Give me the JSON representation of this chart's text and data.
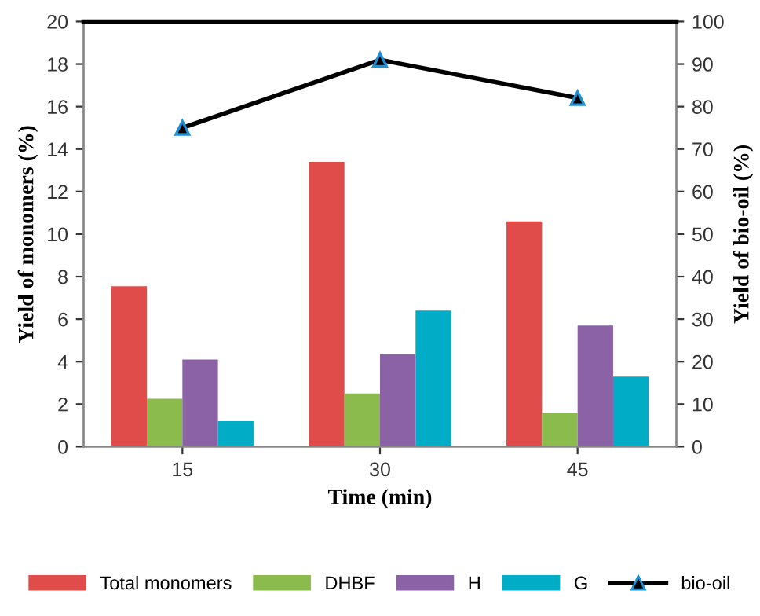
{
  "chart_data": {
    "type": "bar",
    "xlabel": "Time (min)",
    "ylabel": "Yield of monomers (%)",
    "y2label": "Yield of bio-oil (%)",
    "categories": [
      "15",
      "30",
      "45"
    ],
    "series": [
      {
        "name": "Total monomers",
        "color": "#e04c4a",
        "values": [
          7.55,
          13.4,
          10.6
        ]
      },
      {
        "name": "DHBF",
        "color": "#8cbb4d",
        "values": [
          2.25,
          2.5,
          1.6
        ]
      },
      {
        "name": "H",
        "color": "#8c62a6",
        "values": [
          4.1,
          4.35,
          5.7
        ]
      },
      {
        "name": "G",
        "color": "#00acc6",
        "values": [
          1.2,
          6.4,
          3.3
        ]
      },
      {
        "name": "bio-oil",
        "type": "line",
        "axis": "y2",
        "color": "#000000",
        "marker": "triangle",
        "values": [
          75,
          91,
          82
        ]
      }
    ],
    "ylim": [
      0,
      20
    ],
    "yticks": [
      0,
      2,
      4,
      6,
      8,
      10,
      12,
      14,
      16,
      18,
      20
    ],
    "y2lim": [
      0,
      100
    ],
    "y2ticks": [
      0,
      10,
      20,
      30,
      40,
      50,
      60,
      70,
      80,
      90,
      100
    ],
    "grid": false,
    "legend": "bottom"
  }
}
